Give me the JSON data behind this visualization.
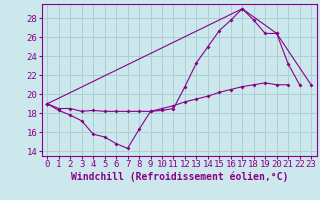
{
  "xlabel": "Windchill (Refroidissement éolien,°C)",
  "xlim": [
    -0.5,
    23.5
  ],
  "ylim": [
    13.5,
    29.5
  ],
  "yticks": [
    14,
    16,
    18,
    20,
    22,
    24,
    26,
    28
  ],
  "xticks": [
    0,
    1,
    2,
    3,
    4,
    5,
    6,
    7,
    8,
    9,
    10,
    11,
    12,
    13,
    14,
    15,
    16,
    17,
    18,
    19,
    20,
    21,
    22,
    23
  ],
  "background_color": "#cce8ec",
  "grid_color": "#aacfd6",
  "line_color": "#880088",
  "series1_x": [
    0,
    1,
    2,
    3,
    4,
    5,
    6,
    7,
    8,
    9,
    10,
    11,
    12,
    13,
    14,
    15,
    16,
    17,
    18,
    19,
    20,
    21,
    22
  ],
  "series1_y": [
    19.0,
    18.3,
    17.8,
    17.2,
    15.8,
    15.5,
    14.8,
    14.3,
    16.3,
    18.2,
    18.3,
    18.5,
    20.8,
    23.3,
    25.0,
    26.7,
    27.8,
    29.0,
    27.8,
    26.4,
    26.4,
    23.2,
    21.0
  ],
  "series2_x": [
    0,
    1,
    2,
    3,
    4,
    5,
    6,
    7,
    8,
    9,
    10,
    11,
    12,
    13,
    14,
    15,
    16,
    17,
    18,
    19,
    20,
    21
  ],
  "series2_y": [
    19.0,
    18.5,
    18.5,
    18.2,
    18.3,
    18.2,
    18.2,
    18.2,
    18.2,
    18.2,
    18.5,
    18.8,
    19.2,
    19.5,
    19.8,
    20.2,
    20.5,
    20.8,
    21.0,
    21.2,
    21.0,
    21.0
  ],
  "series3_x": [
    0,
    17,
    20,
    23
  ],
  "series3_y": [
    19.0,
    29.0,
    26.4,
    21.0
  ],
  "font_size_xlabel": 7,
  "font_size_ticks": 6.5
}
